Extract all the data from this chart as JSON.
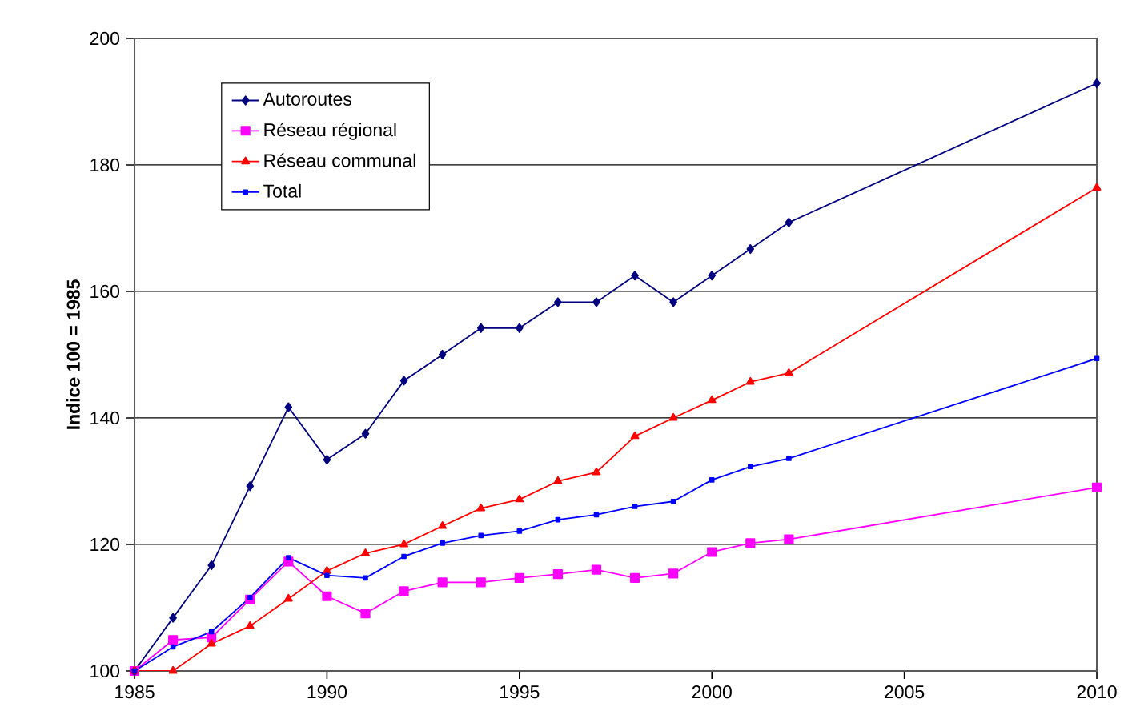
{
  "chart_data": {
    "type": "line",
    "ylabel": "Indice 100 = 1985",
    "x": [
      1985,
      1986,
      1987,
      1988,
      1989,
      1990,
      1991,
      1992,
      1993,
      1994,
      1995,
      1996,
      1997,
      1998,
      1999,
      2000,
      2001,
      2002,
      2010
    ],
    "series": [
      {
        "name": "Autoroutes",
        "color": "#000080",
        "marker": "diamond",
        "values": [
          100,
          108.4,
          116.7,
          129.2,
          141.7,
          133.4,
          137.5,
          145.9,
          150,
          154.2,
          154.2,
          158.3,
          158.3,
          162.5,
          158.3,
          162.5,
          166.7,
          170.9,
          192.9
        ]
      },
      {
        "name": "Réseau régional",
        "color": "#ff00ff",
        "marker": "square",
        "values": [
          100,
          104.9,
          105.3,
          111.3,
          117.3,
          111.8,
          109.1,
          112.6,
          114,
          114,
          114.7,
          115.3,
          116,
          114.7,
          115.4,
          118.8,
          120.2,
          120.8,
          129
        ]
      },
      {
        "name": "Réseau communal",
        "color": "#ff0000",
        "marker": "triangle",
        "values": [
          100,
          100,
          104.3,
          107.1,
          111.4,
          115.8,
          118.6,
          120,
          122.9,
          125.7,
          127.1,
          130,
          131.4,
          137.1,
          140,
          142.8,
          145.7,
          147.1,
          176.4
        ]
      },
      {
        "name": "Total",
        "color": "#0000ff",
        "marker": "square",
        "values": [
          100,
          103.8,
          106.2,
          111.6,
          117.9,
          115.1,
          114.7,
          118.1,
          120.2,
          121.4,
          122.1,
          123.9,
          124.7,
          126,
          126.8,
          130.2,
          132.3,
          133.6,
          149.4
        ]
      }
    ],
    "xlim": [
      1985,
      2010
    ],
    "xticks": [
      1985,
      1990,
      1995,
      2000,
      2005,
      2010
    ],
    "ylim": [
      100,
      200
    ],
    "yticks": [
      100,
      120,
      140,
      160,
      180,
      200
    ],
    "grid": "y",
    "legend": "top left",
    "line_style": "solid"
  }
}
